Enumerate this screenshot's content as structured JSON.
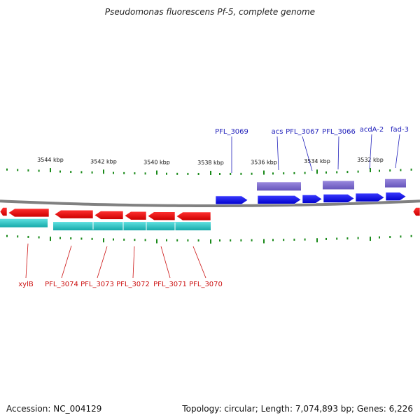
{
  "title": "Pseudomonas fluorescens Pf-5, complete genome",
  "footer": {
    "accession": "Accession: NC_004129",
    "summary": "Topology: circular; Length: 7,074,893 bp; Genes: 6,226"
  },
  "colors": {
    "forward_gene": "#0000e6",
    "reverse_gene": "#e60000",
    "forward_feature": "#7766cc",
    "reverse_feature": "#22c8c8",
    "backbone": "#808080",
    "ticks": "#1a8a1a",
    "forward_label": "#2222bb",
    "reverse_label": "#cc1111"
  },
  "scale": {
    "unit": "kbp",
    "labels": [
      "3544 kbp",
      "3542 kbp",
      "3540 kbp",
      "3538 kbp",
      "3536 kbp",
      "3534 kbp",
      "3532 kbp"
    ]
  },
  "forward_labels": [
    "PFL_3069",
    "acs",
    "PFL_3067",
    "PFL_3066",
    "acdA-2",
    "fad-3"
  ],
  "reverse_labels": [
    "xylB",
    "PFL_3074",
    "PFL_3073",
    "PFL_3072",
    "PFL_3071",
    "PFL_3070"
  ]
}
